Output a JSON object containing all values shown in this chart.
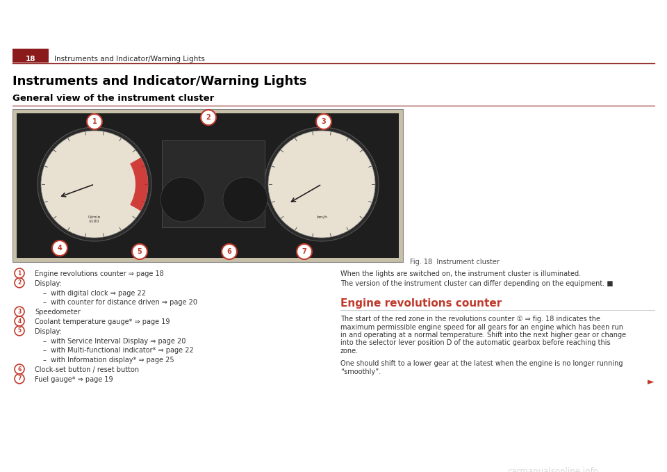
{
  "page_number": "18",
  "header_text": "Instruments and Indicator/Warning Lights",
  "header_bg_color": "#8B1A1A",
  "header_text_color": "#ffffff",
  "header_line_color": "#8B1A1A",
  "title": "Instruments and Indicator/Warning Lights",
  "subtitle": "General view of the instrument cluster",
  "subtitle_line_color": "#8B1A1A",
  "bg_color": "#ffffff",
  "title_color": "#000000",
  "subtitle_color": "#000000",
  "body_text_color": "#333333",
  "red_circle_color": "#c0392b",
  "section_title_color": "#c0392b",
  "fig_caption": "Fig. 18  Instrument cluster",
  "left_items": [
    {
      "num": "1",
      "text": "Engine revolutions counter ⇒ page 18"
    },
    {
      "num": "2",
      "text": "Display:"
    },
    {
      "num": "",
      "text": "–  with digital clock ⇒ page 22"
    },
    {
      "num": "",
      "text": "–  with counter for distance driven ⇒ page 20"
    },
    {
      "num": "3",
      "text": "Speedometer"
    },
    {
      "num": "4",
      "text": "Coolant temperature gauge* ⇒ page 19"
    },
    {
      "num": "5",
      "text": "Display:"
    },
    {
      "num": "",
      "text": "–  with Service Interval Display ⇒ page 20"
    },
    {
      "num": "",
      "text": "–  with Multi-functional indicator* ⇒ page 22"
    },
    {
      "num": "",
      "text": "–  with Information display* ⇒ page 25"
    },
    {
      "num": "6",
      "text": "Clock-set button / reset button"
    },
    {
      "num": "7",
      "text": "Fuel gauge* ⇒ page 19"
    }
  ],
  "right_para1": "When the lights are switched on, the instrument cluster is illuminated.",
  "right_para2": "The version of the instrument cluster can differ depending on the equipment. ■",
  "engine_section_title": "Engine revolutions counter",
  "engine_para1_lines": [
    "The start of the red zone in the revolutions counter ① ⇒ fig. 18 indicates the",
    "maximum permissible engine speed for all gears for an engine which has been run",
    "in and operating at a normal temperature. Shift into the next higher gear or change",
    "into the selector lever position D of the automatic gearbox before reaching this",
    "zone."
  ],
  "engine_para2_lines": [
    "One should shift to a lower gear at the latest when the engine is no longer running",
    "“smoothly”."
  ],
  "arrow_right": "►",
  "watermark": "carmanualsonline.info"
}
